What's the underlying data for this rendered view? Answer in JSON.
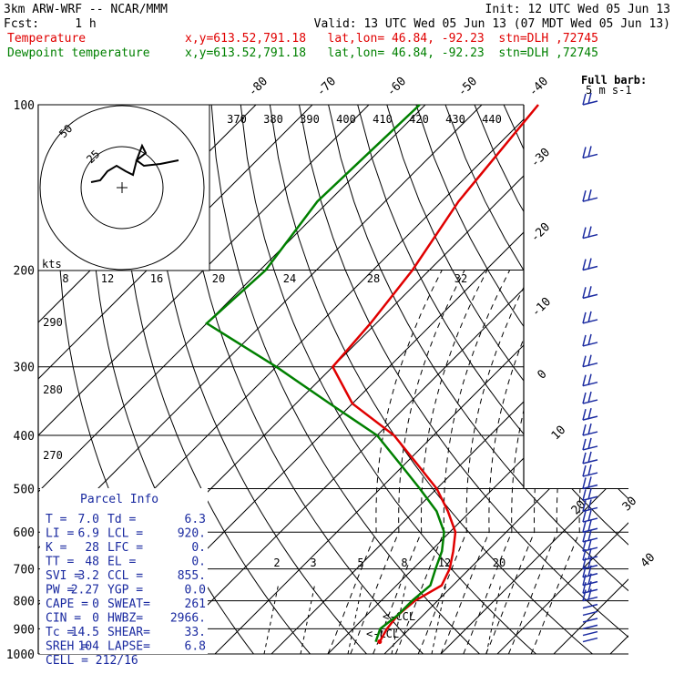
{
  "header": {
    "line1_left": "3km ARW-WRF -- NCAR/MMM",
    "line1_right": "Init: 12 UTC Wed 05 Jun 13",
    "line2_left": "Fcst:     1 h",
    "line2_right": "Valid: 13 UTC Wed 05 Jun 13 (07 MDT Wed 05 Jun 13)",
    "temp_label": "Temperature",
    "temp_loc": "x,y=613.52,791.18   lat,lon= 46.84, -92.23  stn=DLH ,72745",
    "dew_label": "Dewpoint temperature",
    "dew_loc": "x,y=613.52,791.18   lat,lon= 46.84, -92.23  stn=DLH ,72745"
  },
  "colors": {
    "temperature": "#e00000",
    "dewpoint": "#008000",
    "wind": "#1a2aa0",
    "parcel": "#1a2aa0"
  },
  "chart_data": {
    "type": "line",
    "ylabel_values": [
      100,
      200,
      300,
      400,
      500,
      600,
      700,
      800,
      900,
      1000
    ],
    "skewed_temp_labels": [
      "-80",
      "-70",
      "-60",
      "-50",
      "-40",
      "-30",
      "-20",
      "-10",
      "0",
      "10",
      "20",
      "30",
      "40"
    ],
    "theta_labels": [
      "370",
      "380",
      "390",
      "400",
      "410",
      "420",
      "430",
      "440"
    ],
    "theta_left_labels": [
      "290",
      "280",
      "270"
    ],
    "mixing_ratio_labels": [
      "2",
      "3",
      "5",
      "8",
      "12",
      "20"
    ],
    "hodograph": {
      "unit_label": "kts",
      "ring_labels": [
        "25",
        "50"
      ],
      "speed_labels": [
        "8",
        "12",
        "16",
        "20",
        "24",
        "28",
        "32"
      ]
    },
    "ccl_label": "CCL",
    "lcl_label": "LCL",
    "wind_barb_legend": {
      "title": "Full barb:",
      "value": "5 m s-1"
    },
    "series": [
      {
        "name": "Temperature",
        "points": [
          [
            100,
            -60
          ],
          [
            150,
            -57
          ],
          [
            200,
            -53
          ],
          [
            250,
            -51
          ],
          [
            300,
            -50
          ],
          [
            350,
            -40
          ],
          [
            400,
            -27
          ],
          [
            450,
            -18
          ],
          [
            500,
            -10
          ],
          [
            550,
            -4
          ],
          [
            600,
            1
          ],
          [
            650,
            4
          ],
          [
            700,
            6.5
          ],
          [
            750,
            8
          ],
          [
            800,
            6
          ],
          [
            850,
            5.5
          ],
          [
            900,
            6
          ],
          [
            950,
            7
          ]
        ]
      },
      {
        "name": "Dewpoint temperature",
        "points": [
          [
            100,
            -81
          ],
          [
            150,
            -82
          ],
          [
            200,
            -79
          ],
          [
            250,
            -80
          ],
          [
            300,
            -60
          ],
          [
            350,
            -44
          ],
          [
            400,
            -30
          ],
          [
            450,
            -21
          ],
          [
            500,
            -13
          ],
          [
            550,
            -6
          ],
          [
            600,
            -1
          ],
          [
            650,
            2
          ],
          [
            700,
            4
          ],
          [
            750,
            6
          ],
          [
            800,
            5.5
          ],
          [
            850,
            5.5
          ],
          [
            900,
            4.8
          ],
          [
            950,
            6.3
          ]
        ]
      }
    ]
  },
  "parcel_info": {
    "title": "Parcel Info",
    "rows": [
      [
        "T  =",
        "7.0",
        "Td =",
        "6.3"
      ],
      [
        "LI =",
        "6.9",
        "LCL =",
        "920."
      ],
      [
        "K  =",
        "28",
        "LFC =",
        "0."
      ],
      [
        "TT =",
        "48",
        "EL =",
        "0."
      ],
      [
        "SVI =",
        "3.2",
        "CCL =",
        "855."
      ],
      [
        "PW =",
        "2.27",
        "YGP =",
        "0.0"
      ],
      [
        "CAPE =",
        "0",
        "SWEAT=",
        "261"
      ],
      [
        "CIN =",
        "0",
        "HWBZ=",
        "2966."
      ],
      [
        "Tc =",
        "14.5",
        "SHEAR=",
        "33."
      ],
      [
        "SREH =",
        "104",
        "LAPSE=",
        "6.8"
      ]
    ],
    "cell": "CELL = 212/16"
  }
}
